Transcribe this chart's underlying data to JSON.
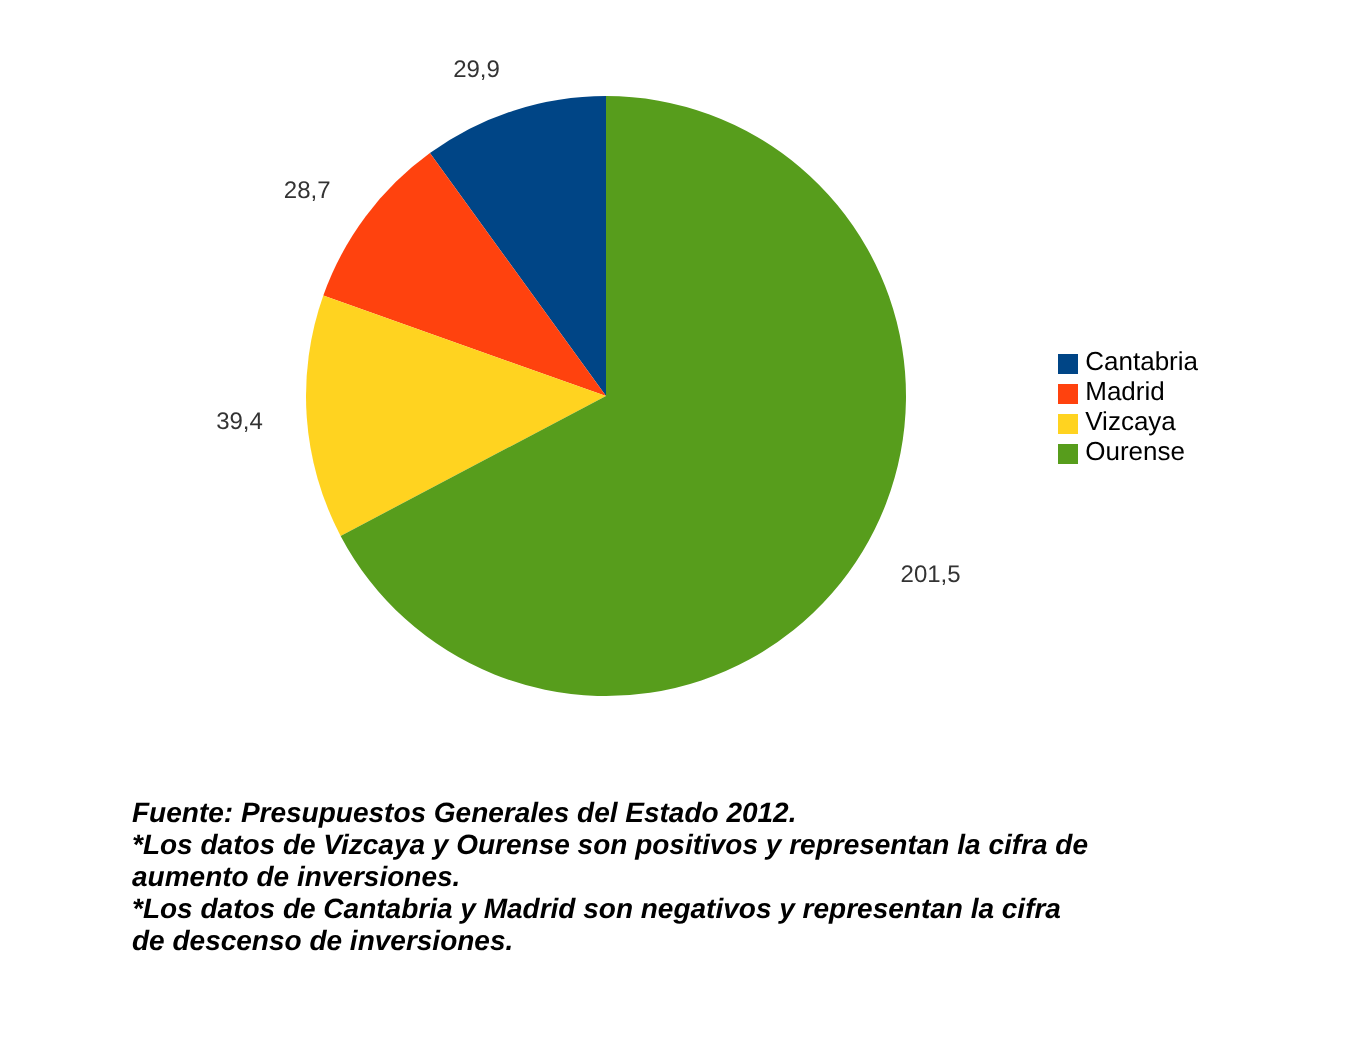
{
  "chart_data": {
    "type": "pie",
    "categories": [
      "Cantabria",
      "Madrid",
      "Vizcaya",
      "Ourense"
    ],
    "values": [
      29.9,
      28.7,
      39.4,
      201.5
    ],
    "colors": [
      "#004586",
      "#ff420e",
      "#ffd320",
      "#579d1c"
    ],
    "value_labels": [
      "29,9",
      "28,7",
      "39,4",
      "201,5"
    ],
    "legend": "right",
    "annotations": [
      "Fuente: Presupuestos Generales del Estado 2012.",
      "*Los datos de Vizcaya y Ourense son positivos y representan la cifra de aumento de inversiones.",
      "*Los datos de Cantabria y Madrid son negativos y representan la cifra de descenso de inversiones."
    ]
  }
}
